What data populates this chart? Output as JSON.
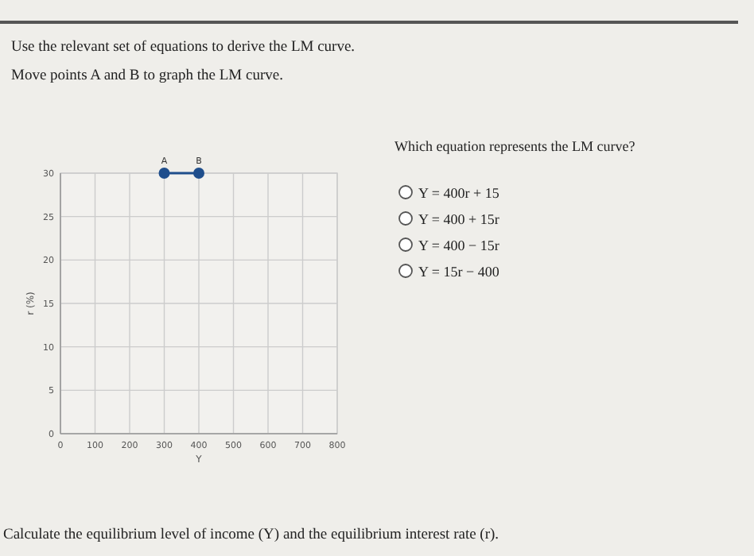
{
  "chart_data": {
    "type": "line",
    "title": "Use the relevant set of equations to derive the LM curve.",
    "subtitle": "Move points A and B to graph the LM curve.",
    "xlabel": "Y",
    "ylabel": "r (%)",
    "x": [
      300,
      400
    ],
    "series": [
      {
        "color": "#1f4e8c",
        "values": [
          30,
          30
        ]
      }
    ],
    "marker": "circle",
    "grid": true,
    "xlim": [
      0,
      800
    ],
    "ylim": [
      0,
      30
    ],
    "xticks": [
      0,
      100,
      200,
      300,
      400,
      500,
      600,
      700,
      800
    ],
    "yticks": [
      0,
      5,
      10,
      15,
      20,
      25,
      30
    ],
    "annotations": [
      {
        "text": "A",
        "x": 300,
        "y": 30
      },
      {
        "text": "B",
        "x": 400,
        "y": 30
      },
      "Which equation represents the LM curve?",
      "Y = 400r + 15",
      "Y = 400 + 15r",
      "Y = 400 − 15r",
      "Y = 15r − 400",
      "Calculate the equilibrium level of income (Y) and the equilibrium interest rate (r)."
    ]
  }
}
